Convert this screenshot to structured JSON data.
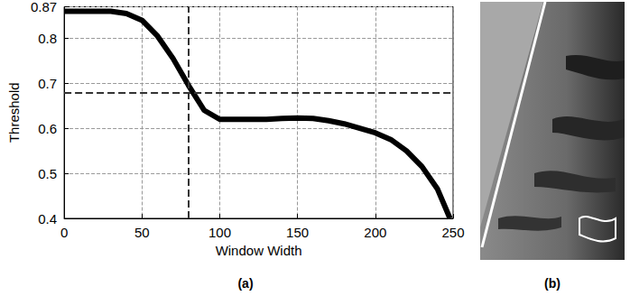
{
  "chart_data": {
    "type": "line",
    "x_label": "Window Width",
    "y_label": "Threshold",
    "x": [
      0,
      10,
      20,
      30,
      40,
      50,
      60,
      70,
      80,
      90,
      100,
      110,
      120,
      130,
      140,
      150,
      160,
      170,
      180,
      190,
      200,
      210,
      220,
      230,
      240,
      248
    ],
    "values": [
      0.86,
      0.86,
      0.86,
      0.86,
      0.855,
      0.84,
      0.805,
      0.755,
      0.695,
      0.64,
      0.62,
      0.62,
      0.62,
      0.62,
      0.622,
      0.623,
      0.622,
      0.617,
      0.61,
      0.6,
      0.59,
      0.575,
      0.55,
      0.515,
      0.465,
      0.4
    ],
    "color": "#000000",
    "xlim": [
      0,
      250
    ],
    "xticks": [
      0,
      50,
      100,
      150,
      200,
      250
    ],
    "ylim": [
      0.4,
      0.87
    ],
    "yticks": [
      0.4,
      0.5,
      0.6,
      0.7,
      0.8
    ],
    "vline": 80,
    "hline": 0.68,
    "grid": true
  },
  "panels": [
    "(a)",
    "(b)"
  ]
}
